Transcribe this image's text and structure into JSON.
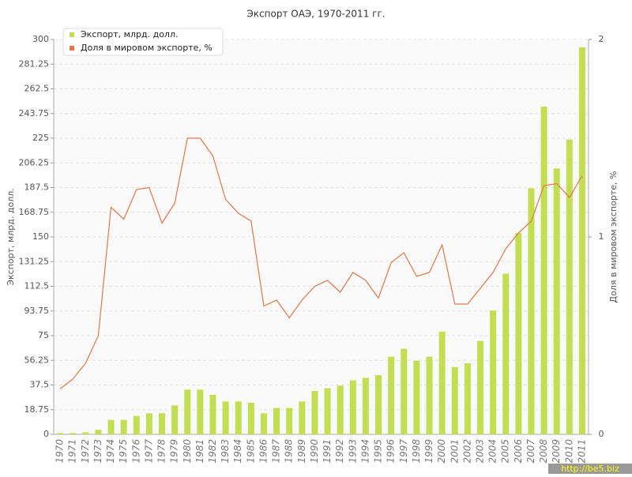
{
  "chart_data": {
    "type": "bar_line",
    "title": "Экспорт ОАЭ, 1970-2011 гг.",
    "y_label": "Экспорт, млрд. долл.",
    "y2_label": "Доля в мировом экспорте, %",
    "watermark": "http://be5.biz",
    "categories": [
      "1970",
      "1971",
      "1972",
      "1973",
      "1974",
      "1975",
      "1976",
      "1977",
      "1978",
      "1979",
      "1980",
      "1981",
      "1982",
      "1983",
      "1984",
      "1985",
      "1986",
      "1987",
      "1988",
      "1989",
      "1990",
      "1991",
      "1992",
      "1993",
      "1994",
      "1995",
      "1996",
      "1997",
      "1998",
      "1999",
      "2000",
      "2001",
      "2002",
      "2003",
      "2004",
      "2005",
      "2006",
      "2007",
      "2008",
      "2009",
      "2010",
      "2011"
    ],
    "series": [
      {
        "name": "Экспорт, млрд. долл.",
        "color": "#c4de52",
        "type": "bar",
        "values": [
          1,
          1,
          1.5,
          3.5,
          11,
          11,
          14,
          16,
          16,
          22,
          34,
          34,
          30,
          25,
          25,
          24,
          16,
          20,
          20,
          25,
          33,
          35,
          37,
          41,
          43,
          45,
          59,
          65,
          56,
          59,
          78,
          51,
          54,
          71,
          94,
          122,
          153,
          187,
          249,
          202,
          224,
          294
        ]
      },
      {
        "name": "Доля в мировом экспорте, %",
        "color": "#e0784a",
        "type": "line",
        "axis": "y2",
        "values": [
          0.23,
          0.28,
          0.36,
          0.5,
          1.15,
          1.09,
          1.24,
          1.25,
          1.07,
          1.17,
          1.5,
          1.5,
          1.41,
          1.19,
          1.12,
          1.08,
          0.65,
          0.68,
          0.59,
          0.68,
          0.75,
          0.78,
          0.72,
          0.82,
          0.78,
          0.69,
          0.87,
          0.92,
          0.8,
          0.82,
          0.96,
          0.66,
          0.66,
          0.74,
          0.82,
          0.94,
          1.02,
          1.08,
          1.26,
          1.27,
          1.2,
          1.31
        ]
      }
    ],
    "ylim": [
      0,
      300
    ],
    "yticks": [
      0,
      18.75,
      37.5,
      56.25,
      75,
      93.75,
      112.5,
      131.25,
      150,
      168.75,
      187.5,
      206.25,
      225,
      243.75,
      262.5,
      281.25,
      300
    ],
    "y2lim": [
      0,
      2
    ],
    "y2ticks": [
      0,
      1,
      2
    ],
    "grid": true,
    "legend": "top-left"
  }
}
